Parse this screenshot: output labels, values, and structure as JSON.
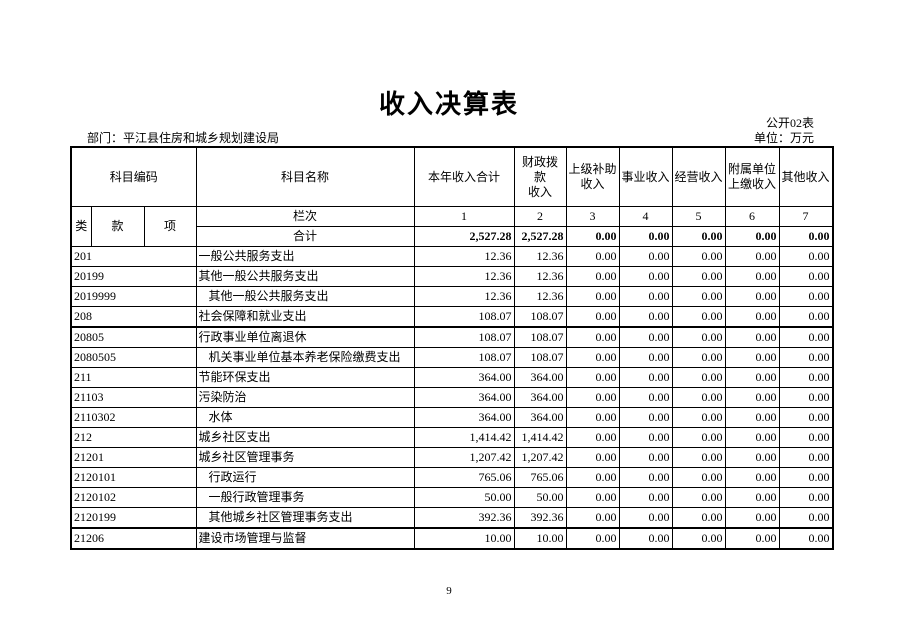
{
  "title": "收入决算表",
  "form_no": "公开02表",
  "department": "部门：平江县住房和城乡规划建设局",
  "unit": "单位：万元",
  "headers": {
    "code": "科目编码",
    "name": "科目名称",
    "total": "本年收入合计",
    "fiscal": "财政拨款\n收入",
    "upper": "上级补助\n收入",
    "business": "事业收入",
    "operating": "经营收入",
    "affiliated": "附属单位\n上缴收入",
    "other": "其他收入",
    "lei": "类",
    "kuan": "款",
    "xiang": "项",
    "lanci": "栏次"
  },
  "column_numbers": [
    "1",
    "2",
    "3",
    "4",
    "5",
    "6",
    "7"
  ],
  "total_row": {
    "label": "合计",
    "values": [
      "2,527.28",
      "2,527.28",
      "0.00",
      "0.00",
      "0.00",
      "0.00",
      "0.00"
    ]
  },
  "rows": [
    {
      "code": "201",
      "name": "一般公共服务支出",
      "indent": false,
      "values": [
        "12.36",
        "12.36",
        "0.00",
        "0.00",
        "0.00",
        "0.00",
        "0.00"
      ]
    },
    {
      "code": "20199",
      "name": "其他一般公共服务支出",
      "indent": false,
      "values": [
        "12.36",
        "12.36",
        "0.00",
        "0.00",
        "0.00",
        "0.00",
        "0.00"
      ]
    },
    {
      "code": "2019999",
      "name": "其他一般公共服务支出",
      "indent": true,
      "values": [
        "12.36",
        "12.36",
        "0.00",
        "0.00",
        "0.00",
        "0.00",
        "0.00"
      ]
    },
    {
      "code": "208",
      "name": "社会保障和就业支出",
      "indent": false,
      "thick": true,
      "values": [
        "108.07",
        "108.07",
        "0.00",
        "0.00",
        "0.00",
        "0.00",
        "0.00"
      ]
    },
    {
      "code": "20805",
      "name": "行政事业单位离退休",
      "indent": false,
      "values": [
        "108.07",
        "108.07",
        "0.00",
        "0.00",
        "0.00",
        "0.00",
        "0.00"
      ]
    },
    {
      "code": "2080505",
      "name": "机关事业单位基本养老保险缴费支出",
      "indent": true,
      "values": [
        "108.07",
        "108.07",
        "0.00",
        "0.00",
        "0.00",
        "0.00",
        "0.00"
      ]
    },
    {
      "code": "211",
      "name": "节能环保支出",
      "indent": false,
      "values": [
        "364.00",
        "364.00",
        "0.00",
        "0.00",
        "0.00",
        "0.00",
        "0.00"
      ]
    },
    {
      "code": "21103",
      "name": "污染防治",
      "indent": false,
      "values": [
        "364.00",
        "364.00",
        "0.00",
        "0.00",
        "0.00",
        "0.00",
        "0.00"
      ]
    },
    {
      "code": "2110302",
      "name": "水体",
      "indent": true,
      "values": [
        "364.00",
        "364.00",
        "0.00",
        "0.00",
        "0.00",
        "0.00",
        "0.00"
      ]
    },
    {
      "code": "212",
      "name": "城乡社区支出",
      "indent": false,
      "values": [
        "1,414.42",
        "1,414.42",
        "0.00",
        "0.00",
        "0.00",
        "0.00",
        "0.00"
      ]
    },
    {
      "code": "21201",
      "name": "城乡社区管理事务",
      "indent": false,
      "values": [
        "1,207.42",
        "1,207.42",
        "0.00",
        "0.00",
        "0.00",
        "0.00",
        "0.00"
      ]
    },
    {
      "code": "2120101",
      "name": "行政运行",
      "indent": true,
      "values": [
        "765.06",
        "765.06",
        "0.00",
        "0.00",
        "0.00",
        "0.00",
        "0.00"
      ]
    },
    {
      "code": "2120102",
      "name": "一般行政管理事务",
      "indent": true,
      "values": [
        "50.00",
        "50.00",
        "0.00",
        "0.00",
        "0.00",
        "0.00",
        "0.00"
      ]
    },
    {
      "code": "2120199",
      "name": "其他城乡社区管理事务支出",
      "indent": true,
      "thick": true,
      "values": [
        "392.36",
        "392.36",
        "0.00",
        "0.00",
        "0.00",
        "0.00",
        "0.00"
      ]
    },
    {
      "code": "21206",
      "name": "建设市场管理与监督",
      "indent": false,
      "values": [
        "10.00",
        "10.00",
        "0.00",
        "0.00",
        "0.00",
        "0.00",
        "0.00"
      ]
    }
  ],
  "page_number": "9"
}
